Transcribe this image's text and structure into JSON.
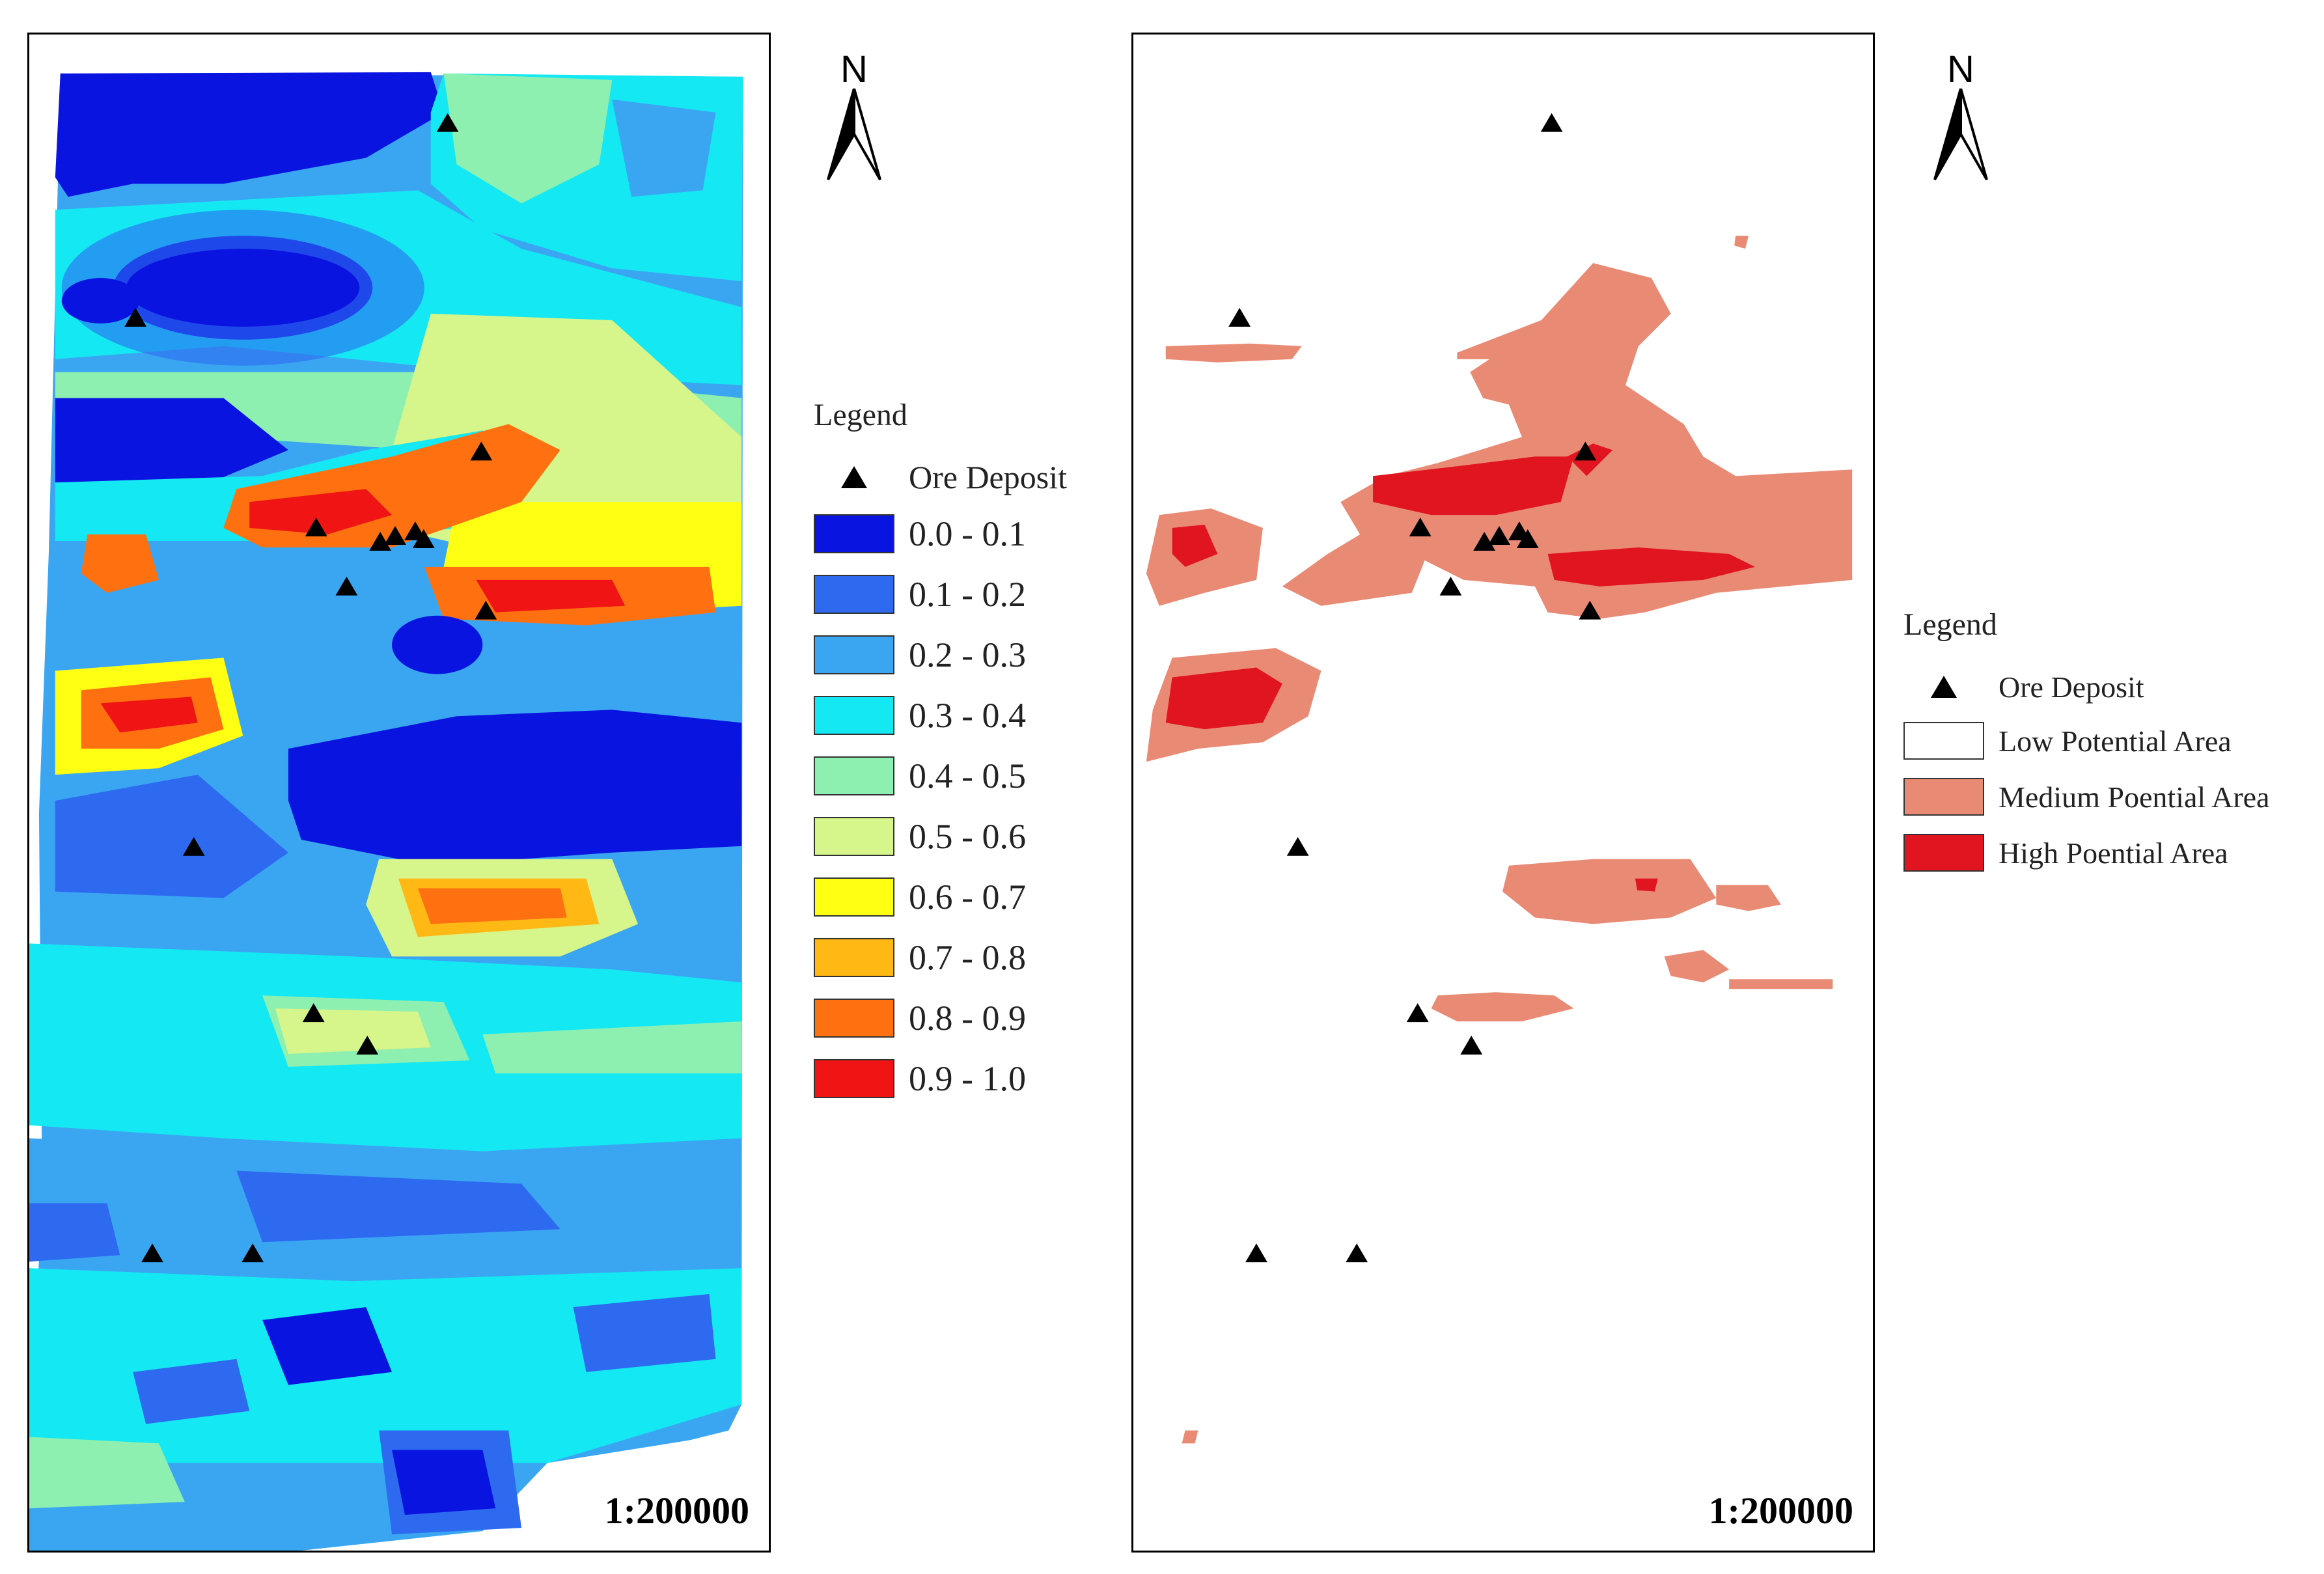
{
  "left_map": {
    "scale": "1:200000",
    "north_label": "N",
    "legend": {
      "title": "Legend",
      "deposit_label": "Ore Deposit",
      "classes": [
        {
          "label": "0.0 - 0.1",
          "color": "#0a14e0"
        },
        {
          "label": "0.1 - 0.2",
          "color": "#2d6af0"
        },
        {
          "label": "0.2 - 0.3",
          "color": "#3aa6f2"
        },
        {
          "label": "0.3 - 0.4",
          "color": "#14e8f2"
        },
        {
          "label": "0.4 - 0.5",
          "color": "#8ef0b0"
        },
        {
          "label": "0.5 - 0.6",
          "color": "#d6f58a"
        },
        {
          "label": "0.6 - 0.7",
          "color": "#ffff14"
        },
        {
          "label": "0.7 - 0.8",
          "color": "#ffb814"
        },
        {
          "label": "0.8 - 0.9",
          "color": "#ff7010"
        },
        {
          "label": "0.9 - 1.0",
          "color": "#f01414"
        }
      ]
    }
  },
  "right_map": {
    "scale": "1:200000",
    "north_label": "N",
    "legend": {
      "title": "Legend",
      "deposit_label": "Ore Deposit",
      "classes": [
        {
          "label": "Low Potential Area",
          "color": "#ffffff"
        },
        {
          "label": "Medium Poential Area",
          "color": "#e98a74"
        },
        {
          "label": "High Poential Area",
          "color": "#e0151f"
        }
      ]
    }
  }
}
